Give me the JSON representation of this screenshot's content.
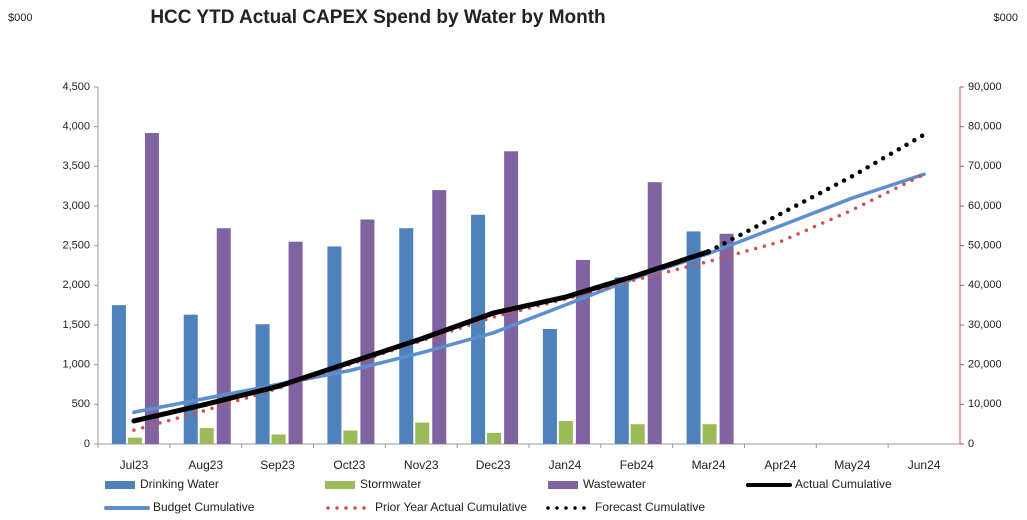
{
  "chart_data": {
    "type": "bar",
    "title": "HCC YTD Actual CAPEX Spend by Water by Month",
    "y_unit": "$000",
    "y2_unit": "$000",
    "categories": [
      "Jul23",
      "Aug23",
      "Sep23",
      "Oct23",
      "Nov23",
      "Dec23",
      "Jan24",
      "Feb24",
      "Mar24",
      "Apr24",
      "May24",
      "Jun24"
    ],
    "ylim": [
      0,
      4500
    ],
    "yticks": [
      0,
      500,
      {
        "value": 1000,
        "label": "1,000"
      },
      {
        "value": 1500,
        "label": "1,500"
      },
      {
        "value": 2000,
        "label": "2,000"
      },
      {
        "value": 2500,
        "label": "2,500"
      },
      {
        "value": 3000,
        "label": "3,000"
      },
      {
        "value": 3500,
        "label": "3,500"
      },
      {
        "value": 4000,
        "label": "4,000"
      },
      {
        "value": 4500,
        "label": "4,500"
      }
    ],
    "y2lim": [
      0,
      90000
    ],
    "y2ticks": [
      0,
      {
        "value": 10000,
        "label": "10,000"
      },
      {
        "value": 20000,
        "label": "20,000"
      },
      {
        "value": 30000,
        "label": "30,000"
      },
      {
        "value": 40000,
        "label": "40,000"
      },
      {
        "value": 50000,
        "label": "50,000"
      },
      {
        "value": 60000,
        "label": "60,000"
      },
      {
        "value": 70000,
        "label": "70,000"
      },
      {
        "value": 80000,
        "label": "80,000"
      },
      {
        "value": 90000,
        "label": "90,000"
      }
    ],
    "y2color": "#c0504d",
    "series": [
      {
        "name": "Drinking Water",
        "type": "bar",
        "color": "#4f81bd",
        "values": [
          1750,
          1630,
          1510,
          2490,
          2720,
          2890,
          1450,
          2100,
          2680,
          null,
          null,
          null
        ]
      },
      {
        "name": "Stormwater",
        "type": "bar",
        "color": "#9bbb59",
        "values": [
          80,
          200,
          120,
          170,
          270,
          140,
          290,
          250,
          250,
          null,
          null,
          null
        ]
      },
      {
        "name": "Wastewater",
        "type": "bar",
        "color": "#8064a2",
        "values": [
          3920,
          2720,
          2550,
          2830,
          3200,
          3690,
          2320,
          3300,
          2650,
          null,
          null,
          null
        ]
      },
      {
        "name": "Actual Cumulative",
        "type": "line",
        "axis": "y2",
        "color": "#000000",
        "style": "solid",
        "values": [
          5800,
          10000,
          14500,
          20500,
          26500,
          33000,
          37000,
          42500,
          48500,
          null,
          null,
          null
        ]
      },
      {
        "name": "Budget Cumulative",
        "type": "line",
        "axis": "y2",
        "color": "#5b8fd0",
        "style": "solid",
        "values": [
          8000,
          11500,
          15000,
          18500,
          23000,
          28000,
          35000,
          42000,
          48000,
          55000,
          62000,
          68000
        ]
      },
      {
        "name": "Prior Year Actual Cumulative",
        "type": "line",
        "axis": "y2",
        "color": "#d05050",
        "style": "dotted",
        "values": [
          3500,
          8500,
          14000,
          20000,
          26000,
          32000,
          36500,
          41500,
          46000,
          51000,
          59000,
          68000
        ]
      },
      {
        "name": "Forecast Cumulative",
        "type": "line",
        "axis": "y2",
        "color": "#000000",
        "style": "dotted",
        "values": [
          null,
          null,
          null,
          null,
          null,
          null,
          null,
          null,
          48500,
          58000,
          67500,
          78000
        ]
      }
    ]
  }
}
